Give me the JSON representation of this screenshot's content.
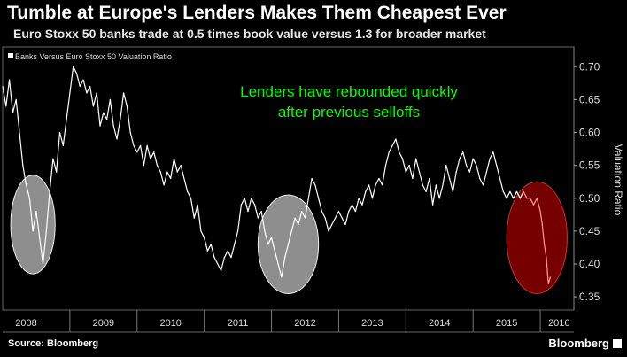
{
  "header": {
    "title": "Tumble at Europe's Lenders Makes Them Cheapest Ever",
    "subtitle": "Euro Stoxx 50 banks trade at 0.5 times book value versus 1.3 for broader market"
  },
  "footer": {
    "source": "Source: Bloomberg",
    "brand": "Bloomberg"
  },
  "colors": {
    "background": "#000000",
    "line": "#ffffff",
    "recent_line": "#ff9a9a",
    "annotation": "#00ff00",
    "circle_gray": "#bdbdbd",
    "circle_red": "#8b0000"
  },
  "chart_data": {
    "type": "line",
    "legend": "Banks Versus Euro Stoxx 50 Valuation Ratio",
    "legend_position": "top-left",
    "ylabel": "Valuation Ratio",
    "ylim": [
      0.33,
      0.73
    ],
    "yticks": [
      "0.70",
      "0.65",
      "0.60",
      "0.55",
      "0.50",
      "0.45",
      "0.40",
      "0.35"
    ],
    "xlim": [
      2008.0,
      2016.5
    ],
    "xticks": [
      "2008",
      "2009",
      "2010",
      "2011",
      "2012",
      "2013",
      "2014",
      "2015",
      "2016"
    ],
    "grid": false,
    "annotation": {
      "lines": [
        "Lenders have rebounded quickly",
        "after previous selloffs"
      ]
    },
    "highlights": [
      {
        "center": [
          2008.45,
          0.46
        ],
        "rx_years": 0.33,
        "ry": 0.075,
        "style": "gray"
      },
      {
        "center": [
          2012.25,
          0.43
        ],
        "rx_years": 0.45,
        "ry": 0.075,
        "style": "gray"
      },
      {
        "center": [
          2015.95,
          0.44
        ],
        "rx_years": 0.45,
        "ry": 0.085,
        "style": "red"
      }
    ],
    "series": [
      {
        "values_x": [
          2008.0,
          2008.05,
          2008.1,
          2008.15,
          2008.2,
          2008.25,
          2008.3,
          2008.35,
          2008.4,
          2008.45,
          2008.5,
          2008.55,
          2008.6,
          2008.65,
          2008.7,
          2008.75,
          2008.8,
          2008.85,
          2008.9,
          2008.95,
          2009.0,
          2009.05,
          2009.1,
          2009.15,
          2009.2,
          2009.25,
          2009.3,
          2009.35,
          2009.4,
          2009.45,
          2009.5,
          2009.55,
          2009.6,
          2009.65,
          2009.7,
          2009.75,
          2009.8,
          2009.85,
          2009.9,
          2009.95,
          2010.0,
          2010.05,
          2010.1,
          2010.15,
          2010.2,
          2010.25,
          2010.3,
          2010.35,
          2010.4,
          2010.45,
          2010.5,
          2010.55,
          2010.6,
          2010.65,
          2010.7,
          2010.75,
          2010.8,
          2010.85,
          2010.9,
          2010.95,
          2011.0,
          2011.05,
          2011.1,
          2011.15,
          2011.2,
          2011.25,
          2011.3,
          2011.35,
          2011.4,
          2011.45,
          2011.5,
          2011.55,
          2011.6,
          2011.65,
          2011.7,
          2011.75,
          2011.8,
          2011.85,
          2011.9,
          2011.95,
          2012.0,
          2012.05,
          2012.1,
          2012.15,
          2012.2,
          2012.25,
          2012.3,
          2012.35,
          2012.4,
          2012.45,
          2012.5,
          2012.55,
          2012.6,
          2012.65,
          2012.7,
          2012.75,
          2012.8,
          2012.85,
          2012.9,
          2012.95,
          2013.0,
          2013.05,
          2013.1,
          2013.15,
          2013.2,
          2013.25,
          2013.3,
          2013.35,
          2013.4,
          2013.45,
          2013.5,
          2013.55,
          2013.6,
          2013.65,
          2013.7,
          2013.75,
          2013.8,
          2013.85,
          2013.9,
          2013.95,
          2014.0,
          2014.05,
          2014.1,
          2014.15,
          2014.2,
          2014.25,
          2014.3,
          2014.35,
          2014.4,
          2014.45,
          2014.5,
          2014.55,
          2014.6,
          2014.65,
          2014.7,
          2014.75,
          2014.8,
          2014.85,
          2014.9,
          2014.95,
          2015.0,
          2015.05,
          2015.1,
          2015.15,
          2015.2,
          2015.25,
          2015.3,
          2015.35,
          2015.4,
          2015.45,
          2015.5,
          2015.55,
          2015.6,
          2015.65,
          2015.7,
          2015.75
        ],
        "values_y": [
          0.67,
          0.64,
          0.68,
          0.63,
          0.65,
          0.6,
          0.55,
          0.52,
          0.5,
          0.45,
          0.48,
          0.44,
          0.4,
          0.45,
          0.51,
          0.56,
          0.54,
          0.6,
          0.58,
          0.62,
          0.66,
          0.7,
          0.69,
          0.67,
          0.68,
          0.66,
          0.67,
          0.64,
          0.66,
          0.61,
          0.63,
          0.62,
          0.65,
          0.61,
          0.59,
          0.62,
          0.66,
          0.64,
          0.6,
          0.58,
          0.57,
          0.58,
          0.55,
          0.58,
          0.56,
          0.57,
          0.55,
          0.54,
          0.52,
          0.54,
          0.53,
          0.56,
          0.54,
          0.55,
          0.53,
          0.51,
          0.5,
          0.47,
          0.49,
          0.45,
          0.44,
          0.42,
          0.43,
          0.41,
          0.4,
          0.39,
          0.41,
          0.42,
          0.41,
          0.43,
          0.45,
          0.49,
          0.5,
          0.48,
          0.5,
          0.49,
          0.47,
          0.48,
          0.45,
          0.43,
          0.44,
          0.42,
          0.4,
          0.38,
          0.41,
          0.43,
          0.45,
          0.47,
          0.46,
          0.48,
          0.47,
          0.5,
          0.53,
          0.52,
          0.5,
          0.48,
          0.47,
          0.45,
          0.46,
          0.47,
          0.48,
          0.47,
          0.46,
          0.48,
          0.49,
          0.48,
          0.5,
          0.49,
          0.51,
          0.52,
          0.5,
          0.52,
          0.53,
          0.52,
          0.55,
          0.57,
          0.58,
          0.59,
          0.57,
          0.56,
          0.54,
          0.55,
          0.53,
          0.56,
          0.54,
          0.52,
          0.51,
          0.53,
          0.49,
          0.52,
          0.5,
          0.52,
          0.55,
          0.53,
          0.51,
          0.54,
          0.56,
          0.57,
          0.55,
          0.54,
          0.56,
          0.55,
          0.53,
          0.52,
          0.54,
          0.56,
          0.57,
          0.55,
          0.53,
          0.51,
          0.5,
          0.51,
          0.5,
          0.51,
          0.5,
          0.51
        ],
        "style": "white"
      },
      {
        "values_x": [
          2015.75,
          2015.8,
          2015.85,
          2015.9,
          2015.95,
          2016.0,
          2016.03,
          2016.06,
          2016.09,
          2016.12,
          2016.15
        ],
        "values_y": [
          0.51,
          0.5,
          0.5,
          0.49,
          0.5,
          0.48,
          0.46,
          0.43,
          0.41,
          0.37,
          0.38
        ],
        "style": "recent"
      }
    ]
  }
}
